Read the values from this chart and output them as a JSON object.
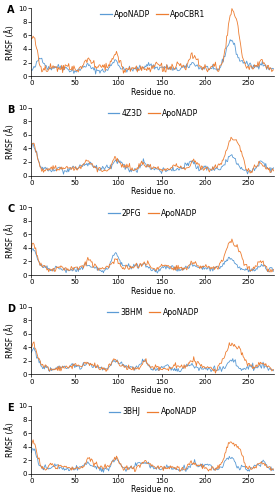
{
  "n_residues": 280,
  "xlim": [
    0,
    280
  ],
  "ylim": [
    0,
    10
  ],
  "yticks": [
    0,
    2,
    4,
    6,
    8,
    10
  ],
  "xticks": [
    0,
    50,
    100,
    150,
    200,
    250
  ],
  "xlabel": "Residue no.",
  "ylabel": "RMSF (Å)",
  "panels": [
    {
      "label": "A",
      "legend": [
        "ApoNADP",
        "ApoCBR1"
      ],
      "colors": [
        "#5B9BD5",
        "#ED7D31"
      ]
    },
    {
      "label": "B",
      "legend": [
        "4Z3D",
        "ApoNADP"
      ],
      "colors": [
        "#5B9BD5",
        "#ED7D31"
      ]
    },
    {
      "label": "C",
      "legend": [
        "2PFG",
        "ApoNADP"
      ],
      "colors": [
        "#5B9BD5",
        "#ED7D31"
      ]
    },
    {
      "label": "D",
      "legend": [
        "3BHM",
        "ApoNADP"
      ],
      "colors": [
        "#5B9BD5",
        "#ED7D31"
      ]
    },
    {
      "label": "E",
      "legend": [
        "3BHJ",
        "ApoNADP"
      ],
      "colors": [
        "#5B9BD5",
        "#ED7D31"
      ]
    }
  ],
  "background_color": "#FFFFFF",
  "line_width": 0.6,
  "label_fontsize": 7,
  "axis_fontsize": 5.5,
  "tick_fontsize": 5,
  "legend_fontsize": 5.5
}
